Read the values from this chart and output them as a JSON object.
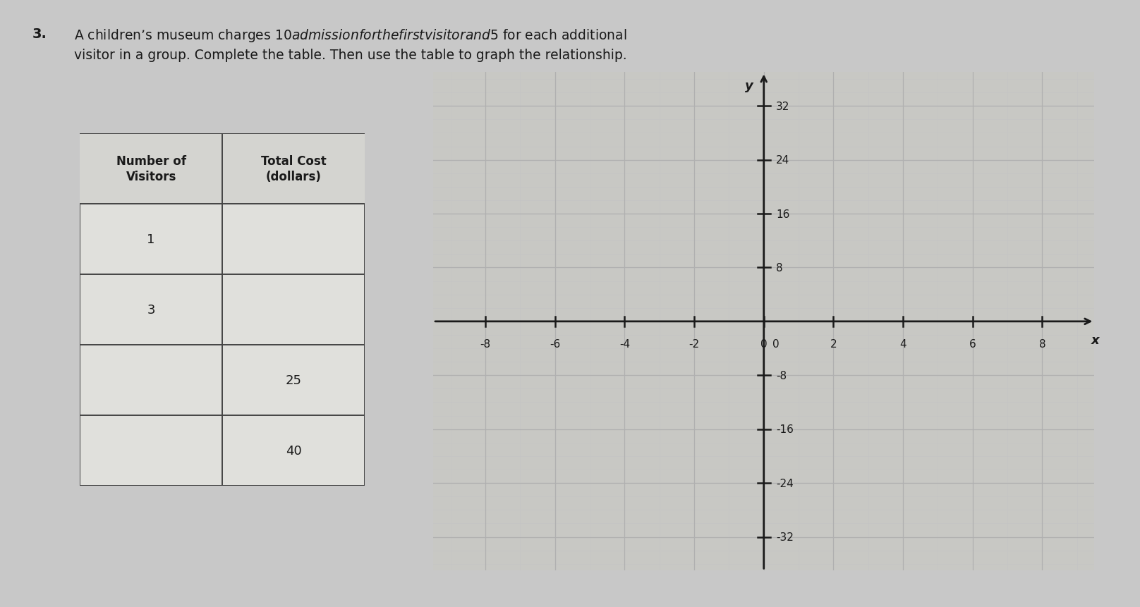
{
  "title_number": "3.",
  "title_text": "A children’s museum charges $10 admission for the first visitor and $5 for each additional\nvisitor in a group. Complete the table. Then use the table to graph the relationship.",
  "table_col1_header": "Number of\nVisitors",
  "table_col2_header": "Total Cost\n(dollars)",
  "table_col1_data": [
    "1",
    "3",
    "",
    ""
  ],
  "table_col2_data": [
    "",
    "",
    "25",
    "40"
  ],
  "graph_xlim": [
    -9.5,
    9.5
  ],
  "graph_ylim": [
    -37,
    37
  ],
  "graph_xticks": [
    -8,
    -6,
    -4,
    -2,
    0,
    2,
    4,
    6,
    8
  ],
  "graph_yticks": [
    -32,
    -24,
    -16,
    -8,
    8,
    16,
    24,
    32
  ],
  "graph_xlabel": "x",
  "graph_ylabel": "y",
  "bg_color": "#c8c8c8",
  "table_bg": "#e0e0dc",
  "table_border": "#444444",
  "text_color": "#1a1a1a",
  "grid_major_color": "#b0b0b0",
  "grid_minor_color": "#c4c4c4",
  "axis_color": "#1a1a1a",
  "graph_bg": "#c8c8c4"
}
